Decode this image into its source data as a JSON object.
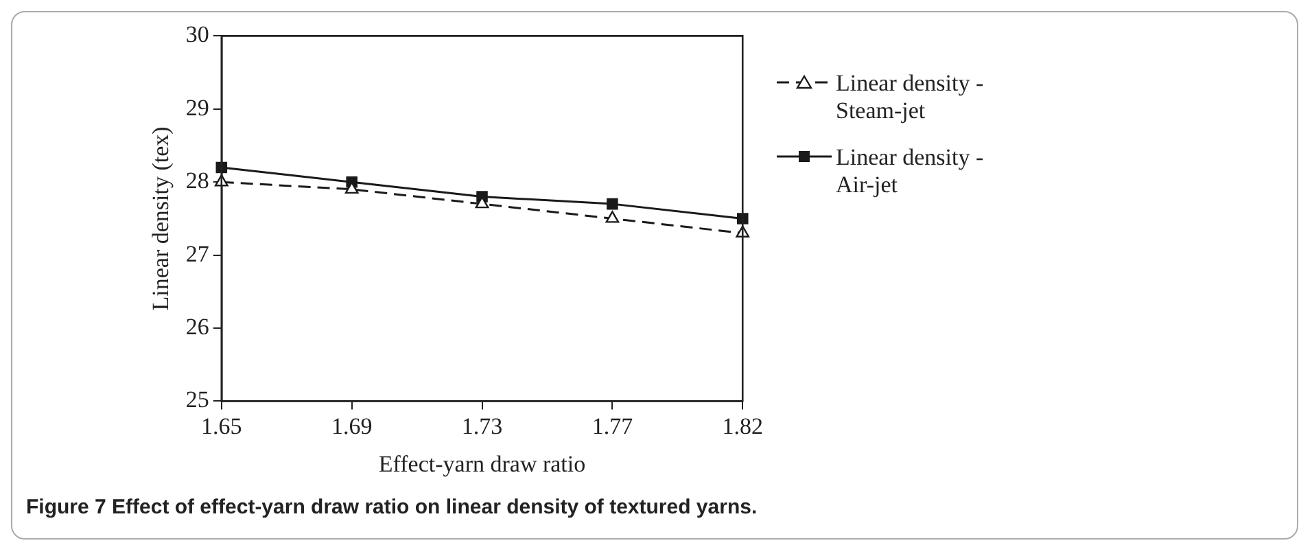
{
  "chart_data": {
    "type": "line",
    "xlabel": "Effect-yarn draw ratio",
    "ylabel": "Linear density (tex)",
    "categories": [
      "1.65",
      "1.69",
      "1.73",
      "1.77",
      "1.82"
    ],
    "series": [
      {
        "name": "Linear density - Steam-jet",
        "color": "#1a1a1a",
        "values": [
          28.0,
          27.9,
          27.7,
          27.5,
          27.3
        ],
        "marker": "triangle",
        "line_style": "dashed"
      },
      {
        "name": "Linear density - Air-jet",
        "color": "#1a1a1a",
        "values": [
          28.2,
          28.0,
          27.8,
          27.7,
          27.5
        ],
        "marker": "square",
        "line_style": "solid"
      }
    ],
    "ylim": [
      25,
      30
    ],
    "yticks": [
      25,
      26,
      27,
      28,
      29,
      30
    ],
    "grid": false,
    "legend": "right",
    "annotations": [
      "Figure 7 Effect of effect-yarn draw ratio on linear density of textured yarns."
    ]
  }
}
